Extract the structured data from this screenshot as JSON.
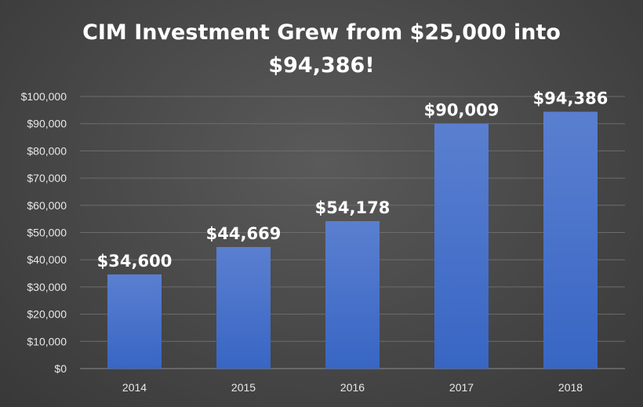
{
  "chart_data": {
    "type": "bar",
    "title_line1": "CIM Investment Grew from $25,000 into",
    "title_line2": "$94,386!",
    "categories": [
      "2014",
      "2015",
      "2016",
      "2017",
      "2018"
    ],
    "values": [
      34600,
      44669,
      54178,
      90009,
      94386
    ],
    "data_labels": [
      "$34,600",
      "$44,669",
      "$54,178",
      "$90,009",
      "$94,386"
    ],
    "y_ticks": [
      "$0",
      "$10,000",
      "$20,000",
      "$30,000",
      "$40,000",
      "$50,000",
      "$60,000",
      "$70,000",
      "$80,000",
      "$90,000",
      "$100,000"
    ],
    "ylim": [
      0,
      100000
    ],
    "xlabel": "",
    "ylabel": "",
    "grid": true,
    "legend": "none",
    "bar_color_top": "#5a7fd0",
    "bar_color_bottom": "#3866c4"
  }
}
